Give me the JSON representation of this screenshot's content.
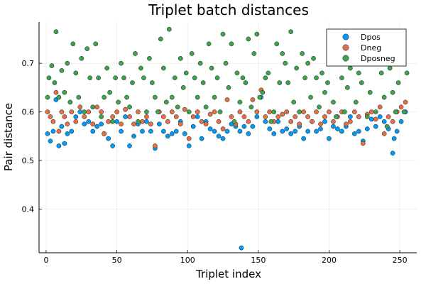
{
  "chart_data": {
    "type": "scatter",
    "title": "Triplet batch distances",
    "xlabel": "Triplet index",
    "ylabel": "Pair distance",
    "xlim": [
      -5,
      262
    ],
    "ylim": [
      0.31,
      0.785
    ],
    "xticks": [
      0,
      50,
      100,
      150,
      200,
      250
    ],
    "yticks": [
      0.4,
      0.5,
      0.6,
      0.7
    ],
    "ytick_labels": [
      "0.4",
      "0.5",
      "0.6",
      "0.7"
    ],
    "grid": true,
    "legend_position": "top-right",
    "series": [
      {
        "name": "Dpos",
        "color": "#009af9",
        "x": [
          1,
          3,
          5,
          7,
          9,
          11,
          13,
          15,
          18,
          21,
          24,
          27,
          30,
          33,
          36,
          39,
          41,
          44,
          47,
          50,
          53,
          56,
          59,
          62,
          65,
          68,
          71,
          74,
          77,
          80,
          83,
          86,
          89,
          92,
          95,
          98,
          101,
          104,
          107,
          110,
          113,
          116,
          119,
          122,
          125,
          128,
          131,
          134,
          137,
          138,
          140,
          143,
          146,
          149,
          152,
          155,
          158,
          161,
          164,
          167,
          170,
          173,
          176,
          179,
          182,
          185,
          188,
          191,
          194,
          197,
          200,
          203,
          206,
          209,
          212,
          215,
          218,
          221,
          224,
          227,
          230,
          233,
          236,
          239,
          242,
          245,
          246,
          248,
          251,
          254
        ],
        "y": [
          0.555,
          0.54,
          0.56,
          0.625,
          0.53,
          0.57,
          0.535,
          0.555,
          0.56,
          0.59,
          0.6,
          0.575,
          0.58,
          0.56,
          0.57,
          0.575,
          0.555,
          0.545,
          0.53,
          0.58,
          0.56,
          0.59,
          0.53,
          0.55,
          0.575,
          0.56,
          0.58,
          0.56,
          0.525,
          0.575,
          0.56,
          0.55,
          0.555,
          0.56,
          0.58,
          0.555,
          0.53,
          0.57,
          0.59,
          0.545,
          0.58,
          0.565,
          0.56,
          0.55,
          0.545,
          0.56,
          0.575,
          0.57,
          0.56,
          0.32,
          0.57,
          0.555,
          0.57,
          0.59,
          0.63,
          0.58,
          0.565,
          0.555,
          0.58,
          0.56,
          0.565,
          0.555,
          0.56,
          0.57,
          0.545,
          0.56,
          0.58,
          0.56,
          0.565,
          0.58,
          0.545,
          0.57,
          0.565,
          0.56,
          0.57,
          0.59,
          0.555,
          0.56,
          0.54,
          0.565,
          0.585,
          0.57,
          0.59,
          0.58,
          0.565,
          0.515,
          0.545,
          0.56,
          0.58,
          0.6
        ]
      },
      {
        "name": "Dneg",
        "color": "#e26f46",
        "x": [
          1,
          3,
          5,
          7,
          9,
          11,
          13,
          15,
          18,
          21,
          24,
          27,
          30,
          33,
          36,
          39,
          41,
          44,
          47,
          50,
          53,
          56,
          59,
          62,
          65,
          68,
          71,
          74,
          77,
          80,
          83,
          86,
          89,
          92,
          95,
          98,
          101,
          104,
          107,
          110,
          113,
          116,
          119,
          122,
          125,
          128,
          131,
          134,
          137,
          140,
          143,
          146,
          149,
          152,
          155,
          158,
          161,
          164,
          167,
          170,
          173,
          176,
          179,
          182,
          185,
          188,
          191,
          194,
          197,
          200,
          203,
          206,
          209,
          212,
          215,
          218,
          221,
          224,
          227,
          230,
          233,
          236,
          239,
          242,
          245,
          248,
          251,
          254
        ],
        "y": [
          0.6,
          0.59,
          0.58,
          0.64,
          0.56,
          0.6,
          0.59,
          0.575,
          0.6,
          0.58,
          0.61,
          0.59,
          0.6,
          0.575,
          0.61,
          0.6,
          0.555,
          0.58,
          0.59,
          0.6,
          0.575,
          0.605,
          0.59,
          0.575,
          0.6,
          0.58,
          0.59,
          0.575,
          0.53,
          0.6,
          0.59,
          0.58,
          0.6,
          0.59,
          0.575,
          0.605,
          0.545,
          0.59,
          0.6,
          0.58,
          0.575,
          0.595,
          0.6,
          0.58,
          0.565,
          0.625,
          0.59,
          0.575,
          0.6,
          0.59,
          0.58,
          0.625,
          0.6,
          0.645,
          0.59,
          0.6,
          0.58,
          0.59,
          0.595,
          0.6,
          0.58,
          0.59,
          0.575,
          0.6,
          0.59,
          0.58,
          0.6,
          0.575,
          0.59,
          0.6,
          0.58,
          0.59,
          0.6,
          0.575,
          0.58,
          0.6,
          0.59,
          0.535,
          0.595,
          0.6,
          0.585,
          0.61,
          0.555,
          0.59,
          0.58,
          0.6,
          0.61,
          0.62
        ]
      },
      {
        "name": "Dposneg",
        "color": "#3da44d",
        "x": [
          1,
          2,
          4,
          6,
          7,
          9,
          11,
          13,
          15,
          17,
          19,
          21,
          23,
          25,
          27,
          29,
          31,
          33,
          35,
          37,
          39,
          41,
          43,
          45,
          47,
          49,
          51,
          53,
          55,
          57,
          59,
          61,
          63,
          65,
          67,
          69,
          71,
          73,
          75,
          77,
          79,
          81,
          83,
          85,
          87,
          89,
          91,
          93,
          95,
          97,
          99,
          101,
          103,
          105,
          107,
          109,
          111,
          113,
          115,
          117,
          119,
          121,
          123,
          125,
          127,
          129,
          131,
          133,
          135,
          137,
          139,
          141,
          143,
          145,
          147,
          149,
          151,
          153,
          155,
          157,
          159,
          161,
          163,
          165,
          167,
          169,
          171,
          173,
          175,
          177,
          179,
          181,
          183,
          185,
          187,
          189,
          191,
          193,
          195,
          197,
          199,
          201,
          203,
          205,
          207,
          209,
          211,
          213,
          215,
          217,
          219,
          221,
          223,
          225,
          227,
          229,
          231,
          233,
          235,
          237,
          239,
          241,
          243,
          245,
          247,
          249,
          251,
          253,
          255
        ],
        "y": [
          0.63,
          0.67,
          0.695,
          0.66,
          0.765,
          0.63,
          0.685,
          0.64,
          0.7,
          0.62,
          0.74,
          0.68,
          0.63,
          0.71,
          0.6,
          0.73,
          0.67,
          0.61,
          0.74,
          0.67,
          0.59,
          0.63,
          0.69,
          0.64,
          0.58,
          0.67,
          0.62,
          0.7,
          0.67,
          0.63,
          0.61,
          0.66,
          0.72,
          0.58,
          0.69,
          0.67,
          0.6,
          0.71,
          0.66,
          0.63,
          0.6,
          0.75,
          0.69,
          0.62,
          0.77,
          0.63,
          0.67,
          0.61,
          0.71,
          0.65,
          0.68,
          0.6,
          0.72,
          0.67,
          0.63,
          0.7,
          0.66,
          0.61,
          0.74,
          0.69,
          0.63,
          0.67,
          0.6,
          0.76,
          0.7,
          0.65,
          0.74,
          0.58,
          0.68,
          0.62,
          0.67,
          0.66,
          0.75,
          0.61,
          0.72,
          0.76,
          0.63,
          0.64,
          0.67,
          0.68,
          0.58,
          0.6,
          0.74,
          0.66,
          0.72,
          0.7,
          0.66,
          0.765,
          0.62,
          0.69,
          0.6,
          0.72,
          0.67,
          0.7,
          0.63,
          0.71,
          0.67,
          0.61,
          0.68,
          0.64,
          0.66,
          0.7,
          0.62,
          0.59,
          0.72,
          0.67,
          0.6,
          0.65,
          0.69,
          0.72,
          0.62,
          0.68,
          0.66,
          0.71,
          0.59,
          0.64,
          0.7,
          0.6,
          0.72,
          0.68,
          0.63,
          0.57,
          0.69,
          0.64,
          0.6,
          0.66,
          0.71,
          0.6,
          0.68
        ]
      }
    ]
  }
}
